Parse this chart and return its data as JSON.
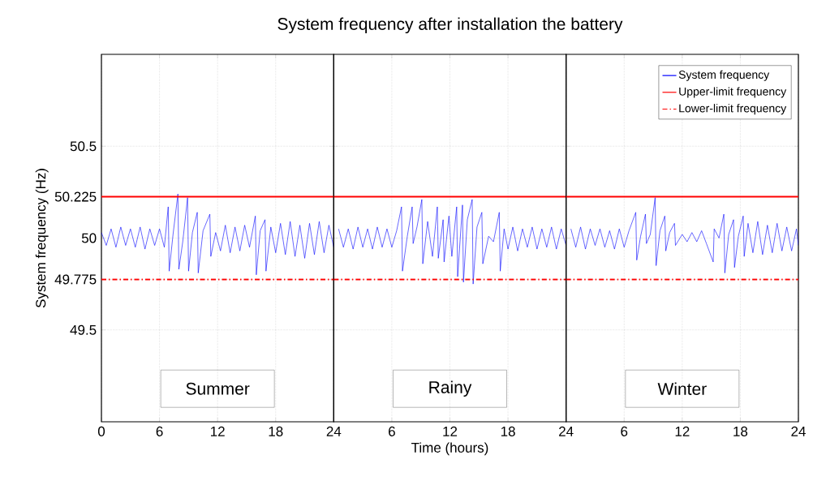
{
  "chart_data": [
    {
      "type": "line",
      "ylabel": "System frequency (Hz)",
      "xlim": [
        0,
        24
      ],
      "ylim": [
        49,
        51
      ],
      "xticks": [
        0,
        6,
        12,
        18,
        24
      ],
      "yticks": [
        49.5,
        49.775,
        50,
        50.225,
        50.5
      ],
      "grid": true,
      "series": [
        {
          "color": "#0000ff",
          "line_style": "solid",
          "x": [
            0,
            0.5,
            1,
            1.5,
            2,
            2.5,
            3,
            3.5,
            4,
            4.5,
            5,
            5.5,
            6,
            6.5,
            6.9,
            7.0,
            7.4,
            7.9,
            8.0,
            8.4,
            8.9,
            9.0,
            9.4,
            9.9,
            10.0,
            10.5,
            11.2,
            11.3,
            11.8,
            12.3,
            12.8,
            13.3,
            13.8,
            14.3,
            14.8,
            15.3,
            15.9,
            16.0,
            16.4,
            16.9,
            17.0,
            17.5,
            18,
            18.5,
            19,
            19.5,
            20,
            20.5,
            21,
            21.5,
            22,
            22.5,
            23,
            23.5,
            24
          ],
          "values": [
            50.03,
            49.96,
            50.05,
            49.95,
            50.06,
            49.96,
            50.05,
            49.95,
            50.06,
            49.94,
            50.05,
            49.96,
            50.05,
            49.95,
            50.17,
            49.82,
            50.02,
            50.24,
            49.83,
            49.98,
            50.22,
            49.82,
            50.03,
            50.14,
            49.81,
            50.04,
            50.13,
            49.9,
            50.03,
            49.93,
            50.07,
            49.92,
            50.06,
            49.93,
            50.07,
            49.95,
            50.12,
            49.8,
            50.04,
            50.1,
            49.82,
            50.06,
            49.92,
            50.08,
            49.91,
            50.09,
            49.9,
            50.07,
            49.89,
            50.08,
            49.91,
            50.09,
            49.92,
            50.07,
            49.95
          ]
        },
        {
          "color": "#ff0000",
          "line_style": "solid",
          "x": [
            0,
            24
          ],
          "values": [
            50.225,
            50.225
          ]
        },
        {
          "color": "#ff0000",
          "line_style": "dashdot",
          "x": [
            0,
            24
          ],
          "values": [
            49.775,
            49.775
          ]
        }
      ],
      "annotations": [
        "Summer"
      ]
    },
    {
      "type": "line",
      "title": "System frequency after installation the battery",
      "xlabel": "Time (hours)",
      "xlim": [
        0,
        24
      ],
      "ylim": [
        49,
        51
      ],
      "xticks": [
        {
          "value": 0,
          "label": null
        },
        6,
        12,
        18,
        24
      ],
      "yticks": [
        49.5,
        49.775,
        50,
        50.225,
        50.5
      ],
      "grid": true,
      "tick_labels": "x",
      "series": [
        {
          "color": "#0000ff",
          "line_style": "solid",
          "x": [
            0.5,
            1,
            1.5,
            2,
            2.5,
            3,
            3.5,
            4,
            4.5,
            5,
            5.5,
            6,
            6.5,
            7.0,
            7.1,
            7.6,
            8.1,
            8.2,
            8.6,
            9.1,
            9.2,
            9.7,
            10.2,
            10.7,
            10.8,
            11.3,
            11.4,
            11.9,
            12.2,
            12.7,
            12.8,
            13.3,
            13.4,
            13.8,
            14.3,
            14.4,
            14.8,
            15.3,
            15.4,
            16,
            16.5,
            17.1,
            17.2,
            17.6,
            18,
            18.5,
            19,
            19.5,
            20,
            20.5,
            21,
            21.5,
            22,
            22.5,
            23,
            23.5,
            24
          ],
          "values": [
            50.05,
            49.95,
            50.05,
            49.94,
            50.06,
            49.95,
            50.05,
            49.94,
            50.06,
            49.95,
            50.05,
            49.95,
            50.04,
            50.17,
            49.82,
            50.01,
            50.17,
            49.97,
            50.06,
            50.21,
            49.86,
            50.09,
            49.9,
            50.17,
            49.89,
            50.1,
            49.87,
            50.12,
            49.9,
            50.17,
            49.79,
            50.18,
            49.76,
            50.1,
            50.21,
            49.75,
            50.06,
            50.14,
            49.86,
            50.01,
            49.98,
            50.14,
            49.82,
            50.05,
            49.94,
            50.06,
            49.93,
            50.05,
            49.95,
            50.06,
            49.94,
            50.05,
            49.95,
            50.06,
            49.94,
            50.05,
            49.96
          ]
        },
        {
          "color": "#ff0000",
          "line_style": "solid",
          "x": [
            0,
            24
          ],
          "values": [
            50.225,
            50.225
          ]
        },
        {
          "color": "#ff0000",
          "line_style": "dashdot",
          "x": [
            0,
            24
          ],
          "values": [
            49.775,
            49.775
          ]
        }
      ],
      "annotations": [
        "Rainy"
      ]
    },
    {
      "type": "line",
      "xlim": [
        0,
        24
      ],
      "ylim": [
        49,
        51
      ],
      "xticks": [
        {
          "value": 0,
          "label": null
        },
        6,
        12,
        18,
        24
      ],
      "yticks": [
        49.5,
        49.775,
        50,
        50.225,
        50.5
      ],
      "grid": true,
      "tick_labels": "x",
      "legend": "top right",
      "series": [
        {
          "name": "System frequency",
          "color": "#0000ff",
          "line_style": "solid",
          "x": [
            0.5,
            1,
            1.5,
            2,
            2.5,
            3,
            3.5,
            4,
            4.5,
            5,
            5.5,
            6,
            6.5,
            7.2,
            7.3,
            7.7,
            8.2,
            8.3,
            8.7,
            9.2,
            9.3,
            9.7,
            10.2,
            10.3,
            10.7,
            11.2,
            11.3,
            12,
            12.5,
            13,
            13.5,
            14,
            14.5,
            15.2,
            15.3,
            15.8,
            16.3,
            16.4,
            16.8,
            17.3,
            17.4,
            17.8,
            18.3,
            18.4,
            18.8,
            19.3,
            19.8,
            20.3,
            20.8,
            21.3,
            21.8,
            22.3,
            22.8,
            23.3,
            23.8,
            24
          ],
          "values": [
            50.05,
            49.95,
            50.06,
            49.94,
            50.05,
            49.96,
            50.05,
            49.95,
            50.04,
            49.94,
            50.05,
            49.95,
            50.04,
            50.14,
            49.88,
            50.01,
            50.13,
            49.97,
            50.02,
            50.22,
            49.85,
            50.04,
            50.12,
            49.93,
            50.03,
            50.08,
            49.96,
            50.02,
            49.98,
            50.03,
            49.98,
            50.04,
            49.97,
            49.87,
            50.05,
            50.0,
            50.13,
            49.81,
            50.02,
            50.1,
            49.84,
            50.01,
            50.12,
            49.9,
            50.08,
            49.92,
            50.09,
            49.91,
            50.07,
            49.92,
            50.08,
            49.93,
            50.06,
            49.93,
            50.05,
            49.96
          ]
        },
        {
          "name": "Upper-limit frequency",
          "color": "#ff0000",
          "line_style": "solid",
          "x": [
            0,
            24
          ],
          "values": [
            50.225,
            50.225
          ]
        },
        {
          "name": "Lower-limit frequency",
          "color": "#ff0000",
          "line_style": "dashdot",
          "x": [
            0,
            24
          ],
          "values": [
            49.775,
            49.775
          ]
        }
      ],
      "annotations": [
        "Winter"
      ]
    }
  ]
}
